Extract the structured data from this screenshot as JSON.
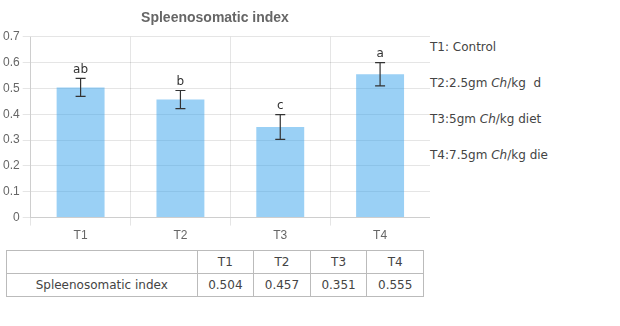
{
  "chart_data": {
    "type": "bar",
    "title": "Spleenosomatic index",
    "categories": [
      "T1",
      "T2",
      "T3",
      "T4"
    ],
    "values": [
      0.504,
      0.457,
      0.351,
      0.555
    ],
    "errors": [
      0.035,
      0.035,
      0.048,
      0.045
    ],
    "annotations": [
      "ab",
      "b",
      "c",
      "a"
    ],
    "ylim": [
      0,
      0.7
    ],
    "yticks": [
      0,
      0.1,
      0.2,
      0.3,
      0.4,
      0.5,
      0.6,
      0.7
    ],
    "grid": true,
    "table": {
      "row_label": "Spleenosomatic index",
      "values": [
        0.504,
        0.457,
        0.351,
        0.555
      ]
    },
    "notes": [
      [
        {
          "text": "T1: Control",
          "style": "normal"
        }
      ],
      [
        {
          "text": "T2:2.5gm ",
          "style": "normal"
        },
        {
          "text": "Ch",
          "style": "italic"
        },
        {
          "text": "/kg  d",
          "style": "normal"
        }
      ],
      [
        {
          "text": "T3:5gm ",
          "style": "normal"
        },
        {
          "text": "Ch",
          "style": "italic"
        },
        {
          "text": "/kg diet",
          "style": "normal"
        }
      ],
      [
        {
          "text": "T4:7.5gm ",
          "style": "normal"
        },
        {
          "text": "Ch",
          "style": "italic"
        },
        {
          "text": "/kg die",
          "style": "normal"
        }
      ]
    ]
  }
}
